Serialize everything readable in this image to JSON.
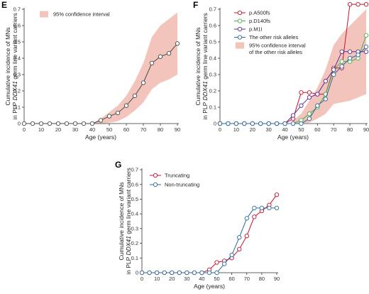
{
  "chart_data": [
    {
      "panel": "E",
      "type": "line",
      "x": [
        0,
        5,
        10,
        15,
        20,
        25,
        30,
        35,
        40,
        45,
        50,
        55,
        60,
        65,
        70,
        75,
        80,
        85,
        90
      ],
      "series": [
        {
          "name": "",
          "color": "#4a4a4a",
          "values": [
            0,
            0,
            0,
            0,
            0,
            0,
            0,
            0,
            0,
            0.02,
            0.045,
            0.065,
            0.11,
            0.17,
            0.25,
            0.37,
            0.41,
            0.43,
            0.49
          ]
        }
      ],
      "band": {
        "name": "95% confidence interval",
        "color": "#f2c4bc",
        "x": [
          40,
          45,
          50,
          55,
          60,
          65,
          70,
          75,
          80,
          85,
          90
        ],
        "lower": [
          0,
          0,
          0.005,
          0.015,
          0.04,
          0.08,
          0.13,
          0.21,
          0.25,
          0.27,
          0.3
        ],
        "upper": [
          0,
          0.03,
          0.07,
          0.11,
          0.17,
          0.26,
          0.37,
          0.53,
          0.6,
          0.64,
          0.68
        ]
      },
      "xlabel": "Age (years)",
      "ylabel_lines": [
        "Cumulative incidence of MNs",
        "in PLP ",
        "DDX41",
        " germ line variant carriers"
      ],
      "xticks": [
        0,
        10,
        20,
        30,
        40,
        50,
        60,
        70,
        80,
        90
      ],
      "yticks": [
        0,
        0.1,
        0.2,
        0.3,
        0.4,
        0.5,
        0.6,
        0.7
      ],
      "xlim": [
        0,
        90
      ],
      "ylim": [
        0,
        0.7
      ],
      "legend_position": "top-left"
    },
    {
      "panel": "F",
      "type": "line",
      "x": [
        0,
        5,
        10,
        15,
        20,
        25,
        30,
        35,
        40,
        45,
        50,
        55,
        60,
        65,
        70,
        75,
        80,
        85,
        90
      ],
      "series": [
        {
          "name": "p.A500fs",
          "color": "#c8102e",
          "values": [
            0,
            0,
            0,
            0,
            0,
            0,
            0,
            0,
            0,
            0.03,
            0.19,
            0.19,
            0.18,
            0.18,
            0.34,
            0.34,
            0.73,
            0.73,
            0.73
          ]
        },
        {
          "name": "p.D140fs",
          "color": "#4caf50",
          "values": [
            0,
            0,
            0,
            0,
            0,
            0,
            0,
            0,
            0,
            0,
            0.02,
            0.06,
            0.1,
            0.18,
            0.33,
            0.38,
            0.38,
            0.4,
            0.54
          ]
        },
        {
          "name": "p.M1I",
          "color": "#5b2d91",
          "values": [
            0,
            0,
            0,
            0,
            0,
            0,
            0,
            0,
            0,
            0.05,
            0.11,
            0.16,
            0.18,
            0.26,
            0.33,
            0.44,
            0.44,
            0.44,
            0.44
          ]
        },
        {
          "name": "The other risk alleles",
          "color": "#2c6a9b",
          "values": [
            0,
            0,
            0,
            0,
            0,
            0,
            0,
            0,
            0,
            0,
            0,
            0.03,
            0.11,
            0.15,
            0.3,
            0.35,
            0.4,
            0.42,
            0.47
          ]
        }
      ],
      "band": {
        "name": "95% confidence interval of the other risk alleles",
        "color": "#f2c4bc",
        "x": [
          45,
          50,
          55,
          60,
          65,
          70,
          75,
          80,
          85,
          90
        ],
        "lower": [
          0,
          0,
          0.005,
          0.03,
          0.06,
          0.12,
          0.13,
          0.14,
          0.16,
          0.18
        ],
        "upper": [
          0.02,
          0.06,
          0.14,
          0.22,
          0.33,
          0.48,
          0.55,
          0.6,
          0.65,
          0.7
        ]
      },
      "xlabel": "Age (years)",
      "ylabel_lines": [
        "Cumulative incidence of MNs",
        "in PLP ",
        "DDX41",
        " germ line variant carriers"
      ],
      "xticks": [
        0,
        10,
        20,
        30,
        40,
        50,
        60,
        70,
        80,
        90
      ],
      "yticks": [
        0,
        0.1,
        0.2,
        0.3,
        0.4,
        0.5,
        0.6,
        0.7
      ],
      "xlim": [
        0,
        90
      ],
      "ylim": [
        0,
        0.7
      ],
      "legend_position": "top-left"
    },
    {
      "panel": "G",
      "type": "line",
      "x": [
        0,
        5,
        10,
        15,
        20,
        25,
        30,
        35,
        40,
        45,
        50,
        55,
        60,
        65,
        70,
        75,
        80,
        85,
        90
      ],
      "series": [
        {
          "name": "Truncating",
          "color": "#c8102e",
          "values": [
            0,
            0,
            0,
            0,
            0,
            0,
            0,
            0,
            0,
            0.02,
            0.07,
            0.08,
            0.1,
            0.16,
            0.25,
            0.38,
            0.42,
            0.46,
            0.53
          ]
        },
        {
          "name": "Non-truncating",
          "color": "#2c6a9b",
          "values": [
            0,
            0,
            0,
            0,
            0,
            0,
            0,
            0,
            0,
            0,
            0,
            0.06,
            0.12,
            0.24,
            0.37,
            0.44,
            0.44,
            0.44,
            0.44
          ]
        }
      ],
      "xlabel": "Age (years)",
      "ylabel_lines": [
        "Cumulative incidence of MNs",
        "in PLP ",
        "DDX41",
        " germ line variant carriers"
      ],
      "xticks": [
        0,
        10,
        20,
        30,
        40,
        50,
        60,
        70,
        80,
        90
      ],
      "yticks": [
        0,
        0.1,
        0.2,
        0.3,
        0.4,
        0.5,
        0.6,
        0.7
      ],
      "xlim": [
        0,
        90
      ],
      "ylim": [
        0,
        0.7
      ],
      "legend_position": "top-left"
    }
  ]
}
